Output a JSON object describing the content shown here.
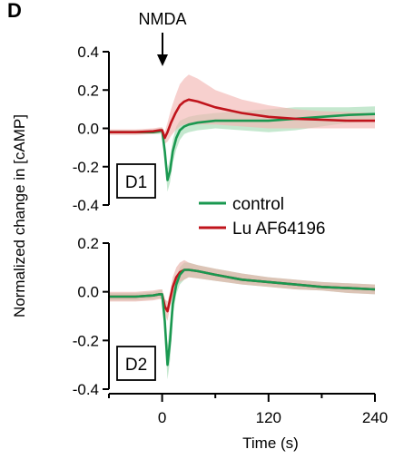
{
  "figure": {
    "panel_letter": "D",
    "annotation": "NMDA",
    "ylabel": "Normalized change in [cAMP]",
    "xlabel": "Time (s)",
    "legend": [
      {
        "label": "control",
        "color": "#1a9850"
      },
      {
        "label": "Lu AF64196",
        "color": "#c0141c"
      }
    ]
  },
  "chart_data": [
    {
      "type": "line",
      "panel_label": "D1",
      "xlim": [
        -60,
        240
      ],
      "ylim": [
        -0.4,
        0.4
      ],
      "yticks": [
        "0.4",
        "0.2",
        "0.0",
        "-0.2",
        "-0.4"
      ],
      "ytick_values": [
        0.4,
        0.2,
        0.0,
        -0.2,
        -0.4
      ],
      "series": [
        {
          "name": "control",
          "color": "#1a9850",
          "band_color": "#a6dbb5",
          "x": [
            -60,
            -30,
            -10,
            -3,
            0,
            3,
            6,
            9,
            12,
            16,
            20,
            25,
            30,
            40,
            60,
            90,
            120,
            150,
            180,
            210,
            240
          ],
          "y": [
            -0.02,
            -0.02,
            -0.02,
            -0.015,
            -0.01,
            -0.12,
            -0.27,
            -0.22,
            -0.12,
            -0.05,
            -0.01,
            0.01,
            0.02,
            0.03,
            0.04,
            0.04,
            0.04,
            0.05,
            0.06,
            0.07,
            0.075
          ],
          "upper": [
            -0.01,
            -0.01,
            -0.01,
            0.0,
            0.005,
            -0.08,
            -0.21,
            -0.16,
            -0.06,
            0.01,
            0.04,
            0.05,
            0.06,
            0.07,
            0.08,
            0.09,
            0.1,
            0.11,
            0.11,
            0.11,
            0.115
          ],
          "lower": [
            -0.03,
            -0.03,
            -0.03,
            -0.03,
            -0.025,
            -0.16,
            -0.33,
            -0.28,
            -0.18,
            -0.11,
            -0.06,
            -0.03,
            -0.02,
            -0.01,
            -0.0,
            -0.01,
            -0.02,
            -0.01,
            0.01,
            0.03,
            0.035
          ]
        },
        {
          "name": "Lu AF64196",
          "color": "#c0141c",
          "band_color": "#f2b7b3",
          "x": [
            -60,
            -30,
            -10,
            -3,
            0,
            3,
            6,
            10,
            15,
            20,
            25,
            30,
            40,
            60,
            90,
            120,
            150,
            180,
            210,
            240
          ],
          "y": [
            -0.02,
            -0.02,
            -0.015,
            -0.01,
            -0.01,
            -0.05,
            -0.02,
            0.03,
            0.08,
            0.12,
            0.14,
            0.15,
            0.14,
            0.11,
            0.08,
            0.06,
            0.05,
            0.045,
            0.04,
            0.04
          ],
          "upper": [
            -0.005,
            -0.005,
            0.0,
            0.005,
            0.005,
            -0.02,
            0.03,
            0.1,
            0.17,
            0.23,
            0.26,
            0.28,
            0.26,
            0.2,
            0.15,
            0.12,
            0.1,
            0.09,
            0.085,
            0.08
          ],
          "lower": [
            -0.035,
            -0.035,
            -0.03,
            -0.025,
            -0.025,
            -0.08,
            -0.07,
            -0.04,
            -0.01,
            0.01,
            0.02,
            0.02,
            0.02,
            0.02,
            0.01,
            0.0,
            0.0,
            0.0,
            0.0,
            0.0
          ]
        }
      ]
    },
    {
      "type": "line",
      "panel_label": "D2",
      "xlim": [
        -60,
        240
      ],
      "ylim": [
        -0.4,
        0.2
      ],
      "yticks": [
        "0.2",
        "0.0",
        "-0.2",
        "-0.4"
      ],
      "ytick_values": [
        0.2,
        0.0,
        -0.2,
        -0.4
      ],
      "xticks": [
        "0",
        "120",
        "240"
      ],
      "xtick_values": [
        0,
        120,
        240
      ],
      "xminor_values": [
        -60,
        60,
        180
      ],
      "series": [
        {
          "name": "control",
          "color": "#1a9850",
          "band_color": "#a6dbb5",
          "x": [
            -60,
            -30,
            -10,
            -3,
            0,
            3,
            6,
            9,
            12,
            16,
            20,
            25,
            30,
            40,
            60,
            90,
            120,
            150,
            180,
            210,
            240
          ],
          "y": [
            -0.02,
            -0.02,
            -0.015,
            -0.01,
            -0.01,
            -0.12,
            -0.3,
            -0.2,
            -0.05,
            0.03,
            0.07,
            0.09,
            0.09,
            0.085,
            0.07,
            0.05,
            0.04,
            0.03,
            0.02,
            0.015,
            0.01
          ],
          "upper": [
            -0.005,
            -0.005,
            0.0,
            0.005,
            0.01,
            -0.07,
            -0.22,
            -0.12,
            0.0,
            0.06,
            0.1,
            0.12,
            0.12,
            0.11,
            0.095,
            0.075,
            0.06,
            0.05,
            0.04,
            0.035,
            0.03
          ],
          "lower": [
            -0.035,
            -0.035,
            -0.03,
            -0.025,
            -0.03,
            -0.17,
            -0.36,
            -0.28,
            -0.1,
            -0.01,
            0.03,
            0.05,
            0.06,
            0.055,
            0.045,
            0.03,
            0.02,
            0.01,
            0.005,
            -0.005,
            -0.01
          ]
        },
        {
          "name": "Lu AF64196",
          "color": "#c0141c",
          "band_color": "#e8b0a9",
          "x": [
            -60,
            -30,
            -10,
            -3,
            0,
            3,
            6,
            9,
            12,
            16,
            20,
            25,
            30,
            40,
            60,
            90,
            120,
            150,
            180,
            210,
            240
          ],
          "y": [
            -0.02,
            -0.02,
            -0.015,
            -0.01,
            -0.01,
            -0.06,
            -0.08,
            -0.03,
            0.02,
            0.06,
            0.08,
            0.09,
            0.09,
            0.085,
            0.07,
            0.05,
            0.04,
            0.03,
            0.02,
            0.015,
            0.01
          ],
          "upper": [
            0.0,
            0.0,
            0.005,
            0.01,
            0.01,
            -0.03,
            -0.04,
            0.0,
            0.06,
            0.1,
            0.12,
            0.13,
            0.12,
            0.11,
            0.095,
            0.075,
            0.06,
            0.05,
            0.04,
            0.035,
            0.03
          ],
          "lower": [
            -0.04,
            -0.04,
            -0.035,
            -0.03,
            -0.03,
            -0.09,
            -0.12,
            -0.06,
            -0.02,
            0.02,
            0.04,
            0.05,
            0.06,
            0.055,
            0.045,
            0.03,
            0.02,
            0.01,
            0.005,
            -0.005,
            -0.01
          ]
        }
      ]
    }
  ]
}
